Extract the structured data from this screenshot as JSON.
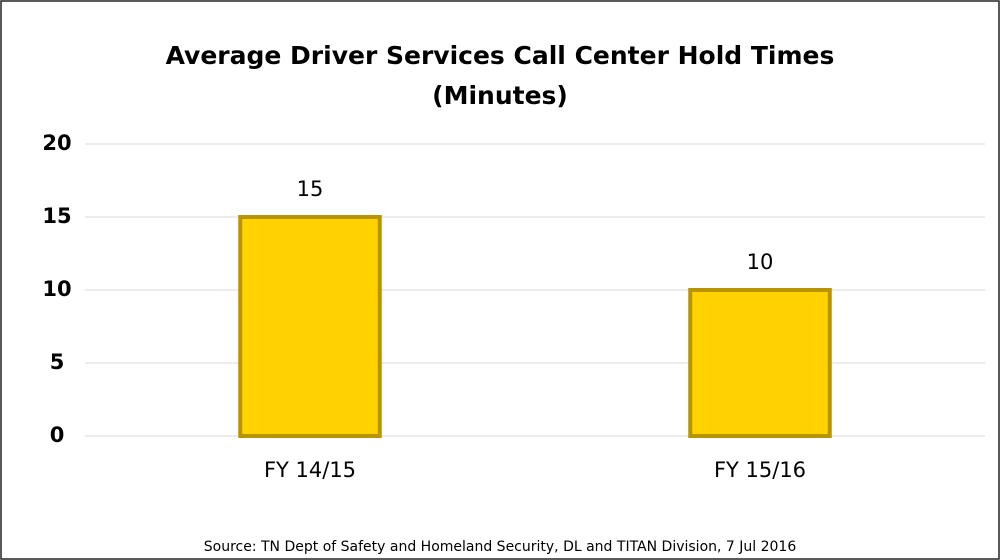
{
  "chart_data": {
    "type": "bar",
    "title": "Average Driver Services Call Center Hold Times",
    "subtitle": "(Minutes)",
    "categories": [
      "FY 14/15",
      "FY 15/16"
    ],
    "values": [
      15,
      10
    ],
    "color": "#FFD200",
    "ylim": [
      0,
      20
    ],
    "yticks": [
      0,
      5,
      10,
      15,
      20
    ],
    "grid": true,
    "source": "Source: TN Dept of Safety and Homeland Security, DL and TITAN Division, 7 Jul 2016"
  }
}
